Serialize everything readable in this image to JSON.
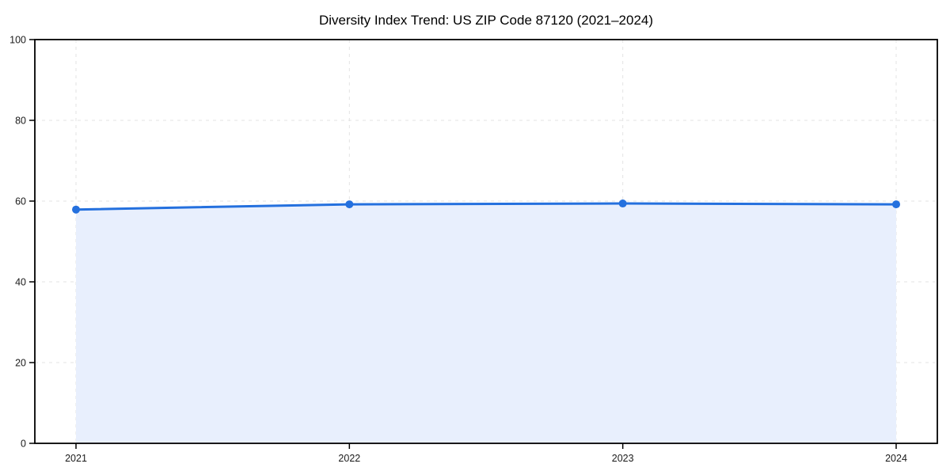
{
  "page": {
    "background": "#ffffff"
  },
  "chart_data": {
    "type": "area",
    "title": "Diversity Index Trend: US ZIP Code 87120 (2021–2024)",
    "x": [
      2021,
      2022,
      2023,
      2024
    ],
    "series": [
      {
        "name": "Diversity Index",
        "values": [
          57.9,
          59.2,
          59.4,
          59.2
        ]
      }
    ],
    "xlabel": "",
    "ylabel": "",
    "ylim": [
      0,
      100
    ],
    "yticks": [
      0,
      20,
      40,
      60,
      80,
      100
    ],
    "xticks": [
      2021,
      2022,
      2023,
      2024
    ],
    "grid": true,
    "grid_style": "dashed",
    "legend_position": "none",
    "marker": "circle",
    "colors": {
      "line": "#2470de",
      "marker": "#2470de",
      "fill": "#e8effd",
      "grid": "#e3e3e3",
      "spine": "#000000",
      "tick_label": "#1a1a1a",
      "title": "#000000",
      "plot_background": "#ffffff"
    }
  }
}
